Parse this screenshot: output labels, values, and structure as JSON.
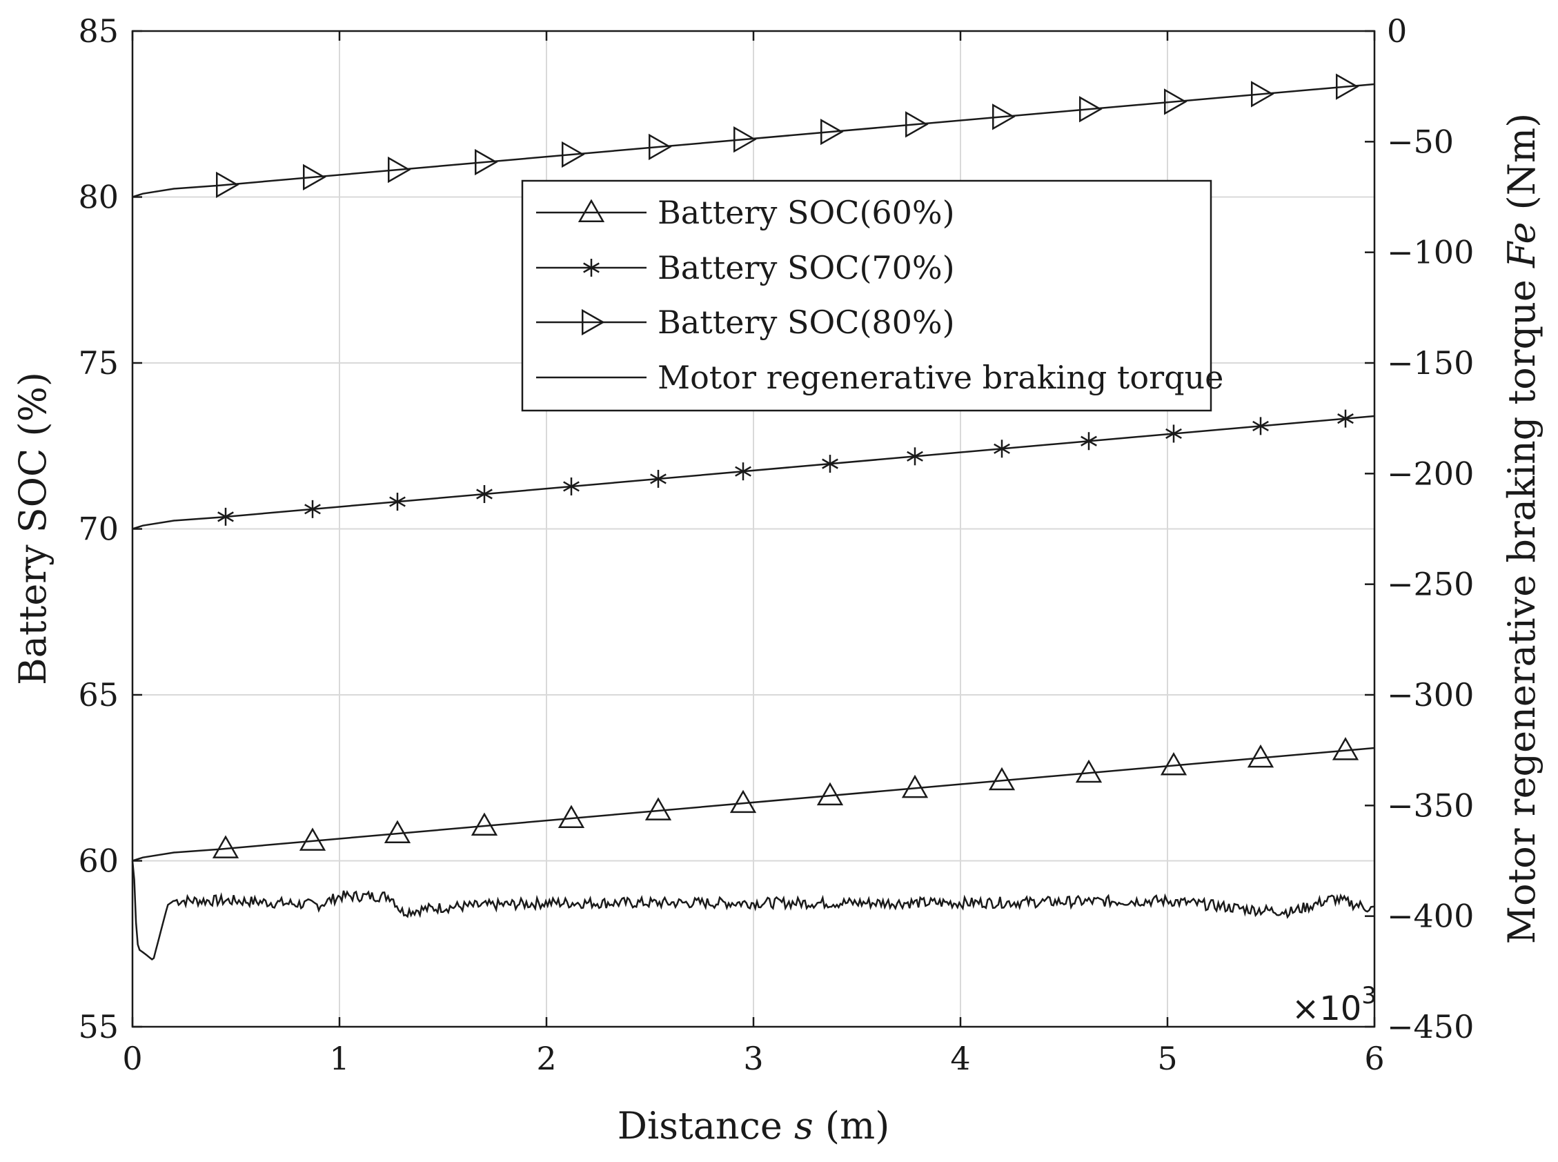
{
  "chart_data": {
    "type": "line",
    "xlabel": {
      "pre": "Distance ",
      "var": "s",
      "post": " (m)"
    },
    "ylabel_left": "Battery SOC (%)",
    "ylabel_right": {
      "pre": "Motor regenerative braking torque ",
      "var": "Fe",
      "post": " (Nm)"
    },
    "x_scale_label": "×10",
    "x_scale_exponent": "3",
    "xlim": [
      0,
      6
    ],
    "ylim_left": [
      55,
      85
    ],
    "ylim_right": [
      -450,
      0
    ],
    "x_ticks": [
      "0",
      "1",
      "2",
      "3",
      "4",
      "5",
      "6"
    ],
    "y_left_ticks": [
      "55",
      "60",
      "65",
      "70",
      "75",
      "80",
      "85"
    ],
    "y_right_ticks": [
      "−450",
      "−400",
      "−350",
      "−300",
      "−250",
      "−200",
      "−150",
      "−100",
      "−50",
      "0"
    ],
    "grid": true,
    "legend_position": "upper-center",
    "series": [
      {
        "name": "Battery SOC(60%)",
        "marker": "triangle-up",
        "axis": "left",
        "x": [
          0,
          0.05,
          0.2,
          0.42,
          6
        ],
        "y": [
          60.0,
          60.1,
          60.25,
          60.35,
          63.4
        ],
        "marker_x": [
          0.45,
          0.87,
          1.28,
          1.7,
          2.12,
          2.54,
          2.95,
          3.37,
          3.78,
          4.2,
          4.62,
          5.03,
          5.45,
          5.86
        ]
      },
      {
        "name": "Battery SOC(70%)",
        "marker": "star",
        "axis": "left",
        "x": [
          0,
          0.05,
          0.2,
          0.42,
          6
        ],
        "y": [
          70.0,
          70.1,
          70.25,
          70.35,
          73.4
        ],
        "marker_x": [
          0.45,
          0.87,
          1.28,
          1.7,
          2.12,
          2.54,
          2.95,
          3.37,
          3.78,
          4.2,
          4.62,
          5.03,
          5.45,
          5.86
        ]
      },
      {
        "name": "Battery SOC(80%)",
        "marker": "triangle-right",
        "axis": "left",
        "x": [
          0,
          0.05,
          0.2,
          0.42,
          6
        ],
        "y": [
          80.0,
          80.1,
          80.25,
          80.35,
          83.4
        ],
        "marker_x": [
          0.45,
          0.87,
          1.28,
          1.7,
          2.12,
          2.54,
          2.95,
          3.37,
          3.78,
          4.2,
          4.62,
          5.03,
          5.45,
          5.86
        ]
      },
      {
        "name": "Motor regenerative braking torque",
        "marker": "none",
        "axis": "right",
        "x": [
          0,
          0.01,
          0.02,
          0.03,
          0.06,
          0.1,
          0.17,
          0.2,
          0.5,
          0.9,
          1.0,
          1.25,
          1.3,
          1.5,
          2.0,
          3.0,
          4.0,
          5.0,
          5.4,
          5.6,
          5.8,
          6.0
        ],
        "y": [
          -375,
          -385,
          -410,
          -415,
          -417,
          -420,
          -395,
          -393,
          -393,
          -395,
          -391,
          -391,
          -398,
          -396,
          -394,
          -394,
          -394,
          -393,
          -397,
          -398,
          -392,
          -397
        ]
      }
    ]
  }
}
